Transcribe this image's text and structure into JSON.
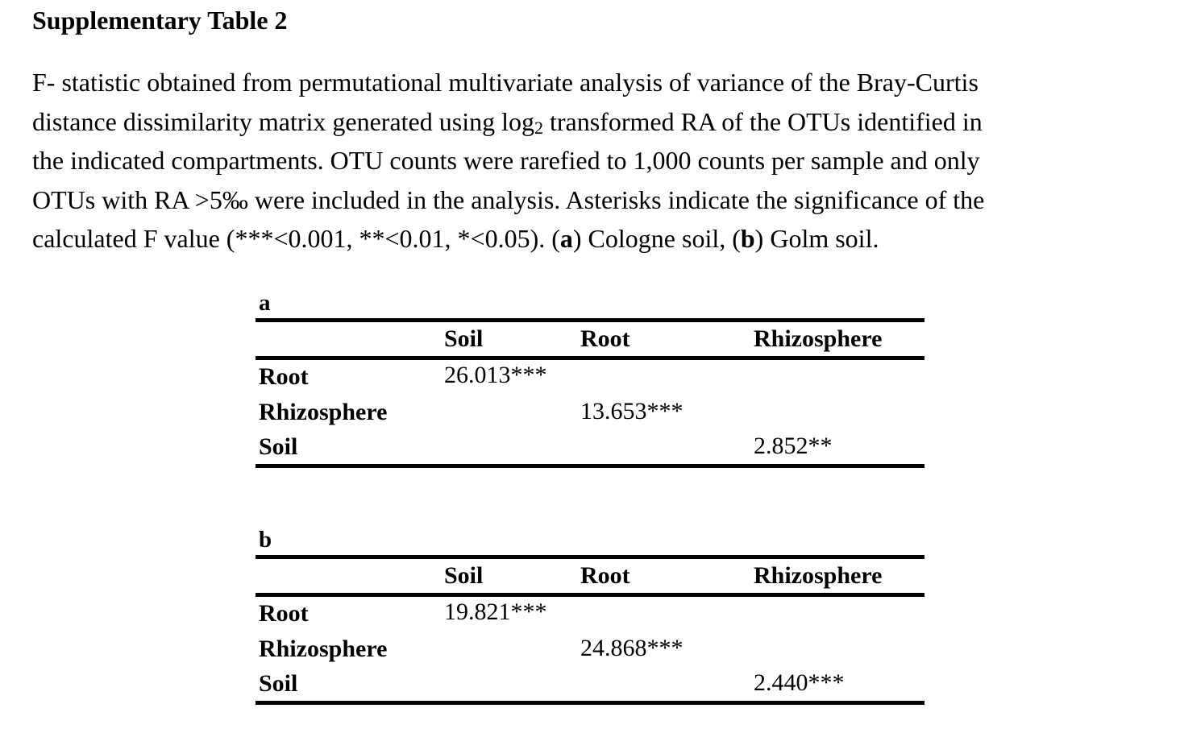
{
  "document": {
    "title": "Supplementary Table 2",
    "caption": {
      "line1": "F- statistic obtained from permutational multivariate analysis of variance of the Bray-Curtis",
      "line2_a": "distance dissimilarity matrix generated using log",
      "line2_sub": "2",
      "line2_b": " transformed RA of the OTUs identified in",
      "line3": "the indicated compartments. OTU counts were rarefied to 1,000 counts per sample and only",
      "line4": "OTUs with RA >5‰ were included in the analysis. Asterisks indicate the significance of the",
      "line5_a": "calculated F value (***<0.001, **<0.01, *<0.05). (",
      "line5_b": "a",
      "line5_c": ") Cologne soil, (",
      "line5_d": "b",
      "line5_e": ") Golm soil."
    }
  },
  "tables": [
    {
      "label": "a",
      "columns": [
        "Soil",
        "Root",
        "Rhizosphere"
      ],
      "rows": [
        {
          "label": "Root",
          "soil": "26.013***",
          "root": "",
          "rhizosphere": ""
        },
        {
          "label": "Rhizosphere",
          "soil": "",
          "root": "13.653***",
          "rhizosphere": ""
        },
        {
          "label": "Soil",
          "soil": "",
          "root": "",
          "rhizosphere": "2.852**"
        }
      ]
    },
    {
      "label": "b",
      "columns": [
        "Soil",
        "Root",
        "Rhizosphere"
      ],
      "rows": [
        {
          "label": "Root",
          "soil": "19.821***",
          "root": "",
          "rhizosphere": ""
        },
        {
          "label": "Rhizosphere",
          "soil": "",
          "root": "24.868***",
          "rhizosphere": ""
        },
        {
          "label": "Soil",
          "soil": "",
          "root": "",
          "rhizosphere": "2.440***"
        }
      ]
    }
  ]
}
